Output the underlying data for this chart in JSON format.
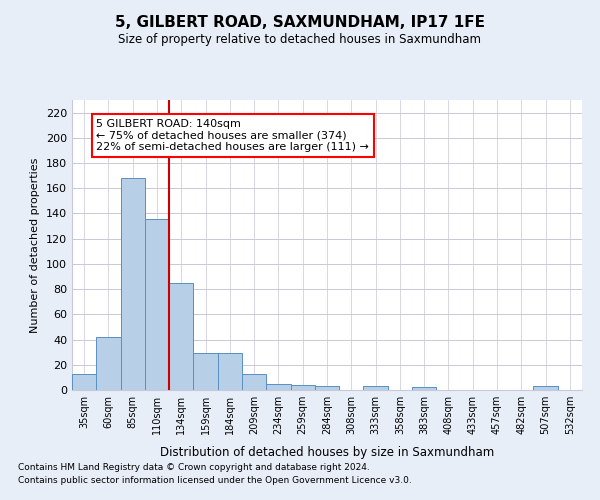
{
  "title": "5, GILBERT ROAD, SAXMUNDHAM, IP17 1FE",
  "subtitle": "Size of property relative to detached houses in Saxmundham",
  "xlabel": "Distribution of detached houses by size in Saxmundham",
  "ylabel": "Number of detached properties",
  "footnote1": "Contains HM Land Registry data © Crown copyright and database right 2024.",
  "footnote2": "Contains public sector information licensed under the Open Government Licence v3.0.",
  "bar_labels": [
    "35sqm",
    "60sqm",
    "85sqm",
    "110sqm",
    "134sqm",
    "159sqm",
    "184sqm",
    "209sqm",
    "234sqm",
    "259sqm",
    "284sqm",
    "308sqm",
    "333sqm",
    "358sqm",
    "383sqm",
    "408sqm",
    "433sqm",
    "457sqm",
    "482sqm",
    "507sqm",
    "532sqm"
  ],
  "bar_values": [
    13,
    42,
    168,
    136,
    85,
    29,
    29,
    13,
    5,
    4,
    3,
    0,
    3,
    0,
    2,
    0,
    0,
    0,
    0,
    3,
    0
  ],
  "bar_color": "#b8cfe8",
  "bar_edge_color": "#5a8fc2",
  "ylim": [
    0,
    230
  ],
  "yticks": [
    0,
    20,
    40,
    60,
    80,
    100,
    120,
    140,
    160,
    180,
    200,
    220
  ],
  "vline_x_index": 4,
  "vline_color": "#cc0000",
  "annotation_text": "5 GILBERT ROAD: 140sqm\n← 75% of detached houses are smaller (374)\n22% of semi-detached houses are larger (111) →",
  "bg_color": "#e8eef8",
  "plot_bg_color": "#ffffff",
  "grid_color": "#c8c8d8"
}
